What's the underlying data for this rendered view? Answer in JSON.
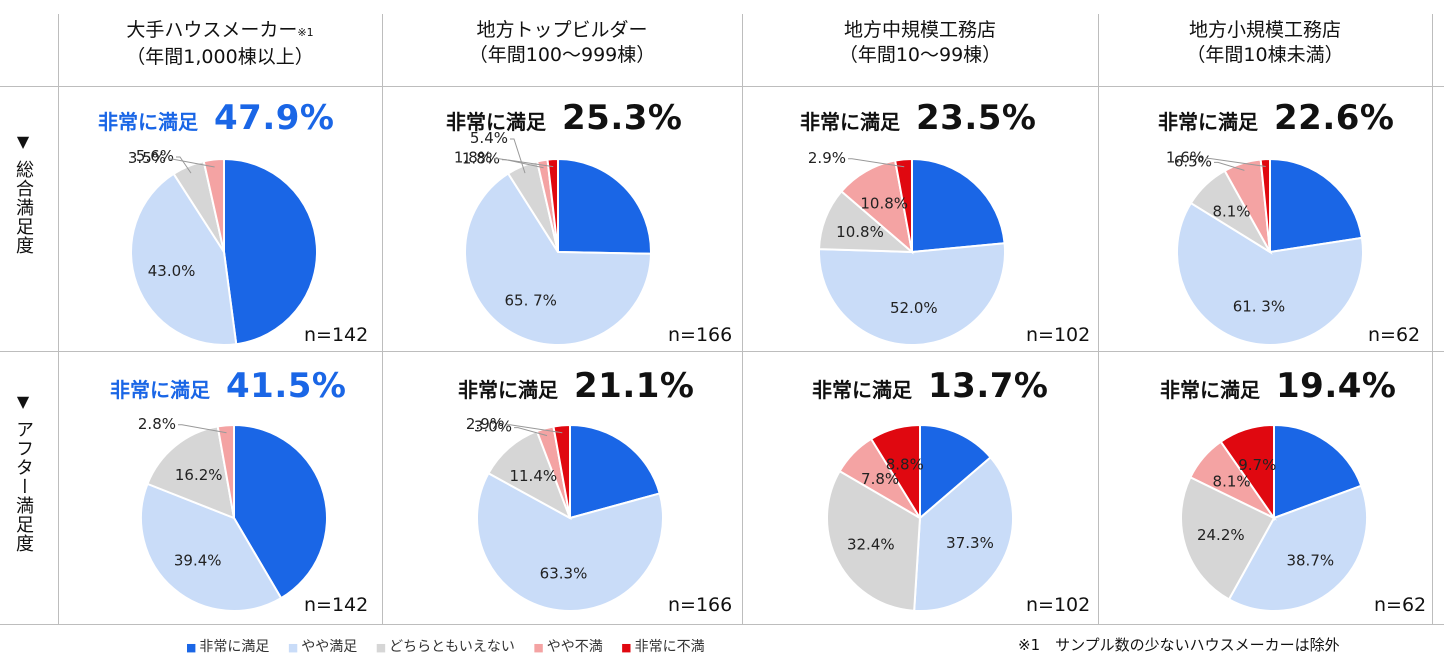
{
  "column_headers": [
    {
      "line1": "大手ハウスメーカー",
      "note": "※1",
      "line2": "（年間1,000棟以上）"
    },
    {
      "line1": "地方トップビルダー",
      "note": "",
      "line2": "（年間100～999棟）"
    },
    {
      "line1": "地方中規模工務店",
      "note": "",
      "line2": "（年間10～99棟）"
    },
    {
      "line1": "地方小規模工務店",
      "note": "",
      "line2": "（年間10棟未満）"
    }
  ],
  "row_headers": [
    {
      "marker": "▼",
      "label": "総合満足度"
    },
    {
      "marker": "▼",
      "label": "アフター満足度"
    }
  ],
  "satisfaction_label": "非常に満足",
  "legend": [
    {
      "marker": "■",
      "label": "非常に満足",
      "color": "#1a66e6"
    },
    {
      "marker": "■",
      "label": "やや満足",
      "color": "#c9dcf8"
    },
    {
      "marker": "■",
      "label": "どちらともいえない",
      "color": "#d6d6d6"
    },
    {
      "marker": "■",
      "label": "やや不満",
      "color": "#f4a3a3"
    },
    {
      "marker": "■",
      "label": "非常に不満",
      "color": "#e00810"
    }
  ],
  "footnote": "※1　サンプル数の少ないハウスメーカーは除外",
  "chart_data": [
    {
      "type": "pie",
      "row": "総合満足度",
      "segment": "大手ハウスメーカー",
      "headline": "47.9%",
      "headline_color": "#1a66e6",
      "n": "n=142",
      "values": [
        47.9,
        43.0,
        5.6,
        3.5,
        0
      ],
      "value_labels": [
        "",
        "43.0%",
        "5.6%",
        "3.5%",
        ""
      ]
    },
    {
      "type": "pie",
      "row": "総合満足度",
      "segment": "地方トップビルダー",
      "headline": "25.3%",
      "headline_color": "#111111",
      "n": "n=166",
      "values": [
        25.3,
        65.7,
        5.4,
        1.8,
        1.8
      ],
      "value_labels": [
        "",
        "65. 7%",
        "5.4%",
        "1.8%",
        "1.8%"
      ]
    },
    {
      "type": "pie",
      "row": "総合満足度",
      "segment": "地方中規模工務店",
      "headline": "23.5%",
      "headline_color": "#111111",
      "n": "n=102",
      "values": [
        23.5,
        52.0,
        10.8,
        10.8,
        2.9
      ],
      "value_labels": [
        "",
        "52.0%",
        "10.8%",
        "10.8%",
        "2.9%"
      ]
    },
    {
      "type": "pie",
      "row": "総合満足度",
      "segment": "地方小規模工務店",
      "headline": "22.6%",
      "headline_color": "#111111",
      "n": "n=62",
      "values": [
        22.6,
        61.3,
        8.1,
        6.5,
        1.6
      ],
      "value_labels": [
        "",
        "61. 3%",
        "8.1%",
        "6.5%",
        "1.6%"
      ]
    },
    {
      "type": "pie",
      "row": "アフター満足度",
      "segment": "大手ハウスメーカー",
      "headline": "41.5%",
      "headline_color": "#1a66e6",
      "n": "n=142",
      "values": [
        41.5,
        39.4,
        16.2,
        2.8,
        0
      ],
      "value_labels": [
        "",
        "39.4%",
        "16.2%",
        "2.8%",
        ""
      ]
    },
    {
      "type": "pie",
      "row": "アフター満足度",
      "segment": "地方トップビルダー",
      "headline": "21.1%",
      "headline_color": "#111111",
      "n": "n=166",
      "values": [
        21.1,
        63.3,
        11.4,
        3.0,
        2.9
      ],
      "value_labels": [
        "",
        "63.3%",
        "11.4%",
        "3.0%",
        "2.9%"
      ]
    },
    {
      "type": "pie",
      "row": "アフター満足度",
      "segment": "地方中規模工務店",
      "headline": "13.7%",
      "headline_color": "#111111",
      "n": "n=102",
      "values": [
        13.7,
        37.3,
        32.4,
        7.8,
        8.8
      ],
      "value_labels": [
        "",
        "37.3%",
        "32.4%",
        "7.8%",
        "8.8%"
      ]
    },
    {
      "type": "pie",
      "row": "アフター満足度",
      "segment": "地方小規模工務店",
      "headline": "19.4%",
      "headline_color": "#111111",
      "n": "n=62",
      "values": [
        19.4,
        38.7,
        24.2,
        8.1,
        9.7
      ],
      "value_labels": [
        "",
        "38.7%",
        "24.2%",
        "8.1%",
        "9.7%"
      ]
    }
  ]
}
